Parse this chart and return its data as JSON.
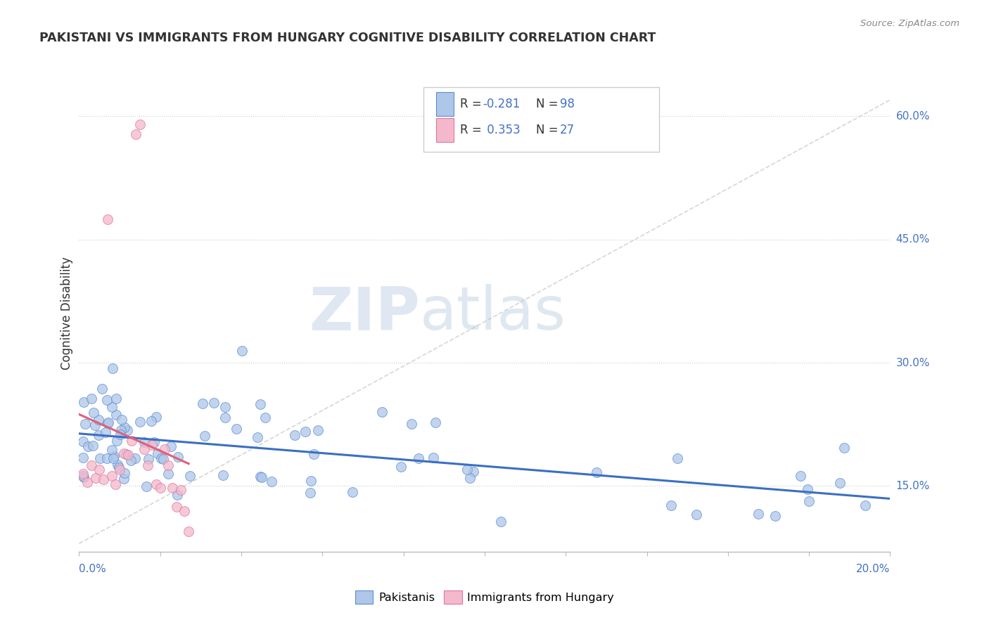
{
  "title": "PAKISTANI VS IMMIGRANTS FROM HUNGARY COGNITIVE DISABILITY CORRELATION CHART",
  "source": "Source: ZipAtlas.com",
  "ylabel": "Cognitive Disability",
  "y_ticks_right": [
    "15.0%",
    "30.0%",
    "45.0%",
    "60.0%"
  ],
  "y_ticks_right_vals": [
    0.15,
    0.3,
    0.45,
    0.6
  ],
  "x_range": [
    0.0,
    0.2
  ],
  "y_range": [
    0.07,
    0.65
  ],
  "color_blue": "#aec6e8",
  "color_pink": "#f4b8cc",
  "color_blue_edge": "#5b8ed6",
  "color_pink_edge": "#e07898",
  "color_line_blue": "#3a6fc4",
  "color_line_pink": "#e0607a",
  "color_diag": "#cccccc",
  "color_grid": "#cccccc",
  "color_axis_text": "#4472c4",
  "watermark_zip": "ZIP",
  "watermark_atlas": "atlas",
  "legend_text_r1": "R = -0.281",
  "legend_text_n1": "N = 98",
  "legend_text_r2": "R =  0.353",
  "legend_text_n2": "N = 27"
}
